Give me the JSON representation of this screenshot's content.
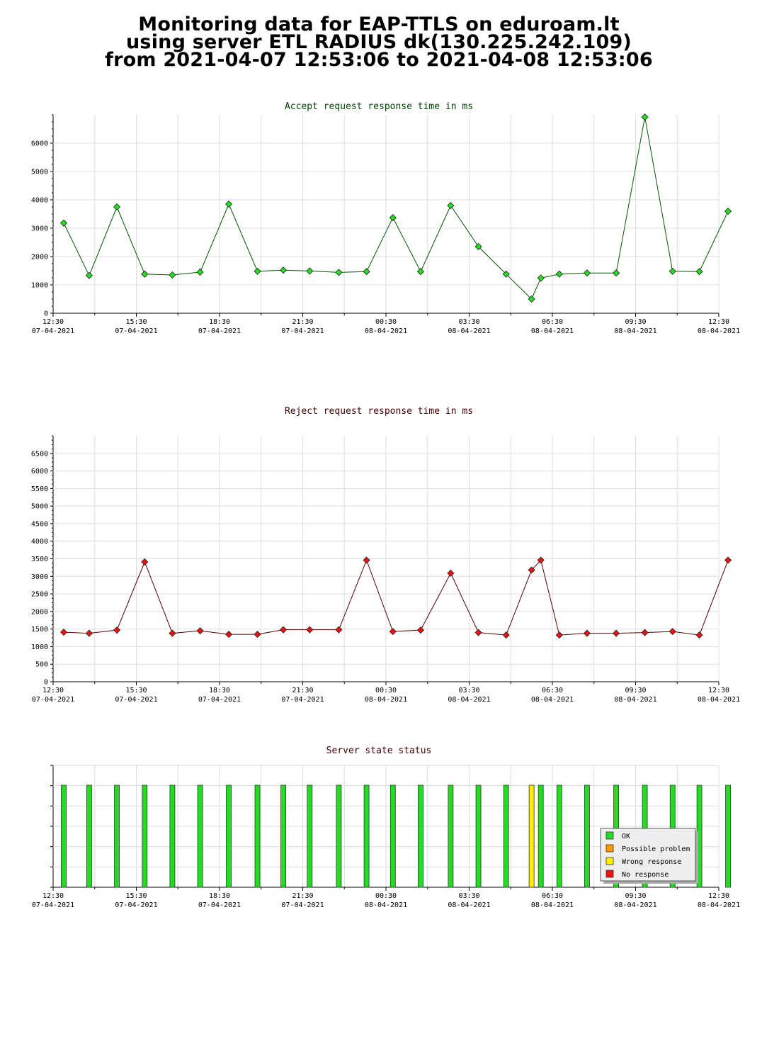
{
  "header": {
    "line1": "Monitoring data for EAP-TTLS on eduroam.lt",
    "line2": "using server ETL RADIUS dk(130.225.242.109)",
    "line3": "from 2021-04-07 12:53:06 to 2021-04-08 12:53:06"
  },
  "colors": {
    "accept_title": "#004400",
    "reject_title": "#440000",
    "accept_line": "#005500",
    "accept_marker": "#22dd22",
    "reject_line": "#550000",
    "reject_marker": "#ee1111",
    "grid": "#dddddd",
    "ok": "#22dd22",
    "possible_problem": "#ff9900",
    "wrong_response": "#ffee00",
    "no_response": "#ee1111"
  },
  "x_ticks": [
    {
      "time": "12:30",
      "date": "07-04-2021"
    },
    {
      "time": "15:30",
      "date": "07-04-2021"
    },
    {
      "time": "18:30",
      "date": "07-04-2021"
    },
    {
      "time": "21:30",
      "date": "07-04-2021"
    },
    {
      "time": "00:30",
      "date": "08-04-2021"
    },
    {
      "time": "03:30",
      "date": "08-04-2021"
    },
    {
      "time": "06:30",
      "date": "08-04-2021"
    },
    {
      "time": "09:30",
      "date": "08-04-2021"
    },
    {
      "time": "12:30",
      "date": "08-04-2021"
    }
  ],
  "chart_data": [
    {
      "type": "line",
      "title": "Accept request response time in ms",
      "xlabel": "",
      "ylabel": "",
      "x": [
        "2021-04-07 12:53",
        "2021-04-07 13:48",
        "2021-04-07 14:48",
        "2021-04-07 15:48",
        "2021-04-07 16:48",
        "2021-04-07 17:48",
        "2021-04-07 18:50",
        "2021-04-07 19:52",
        "2021-04-07 20:48",
        "2021-04-07 21:45",
        "2021-04-07 22:48",
        "2021-04-07 23:48",
        "2021-04-08 00:45",
        "2021-04-08 01:45",
        "2021-04-08 02:50",
        "2021-04-08 03:50",
        "2021-04-08 04:50",
        "2021-04-08 05:45",
        "2021-04-08 06:05",
        "2021-04-08 06:45",
        "2021-04-08 07:45",
        "2021-04-08 08:48",
        "2021-04-08 09:50",
        "2021-04-08 10:50",
        "2021-04-08 11:48",
        "2021-04-08 12:50"
      ],
      "values": [
        3180,
        1330,
        3750,
        1380,
        1350,
        1450,
        3850,
        1480,
        1520,
        1490,
        1440,
        1470,
        3370,
        1470,
        3800,
        2350,
        1380,
        500,
        1240,
        1380,
        1420,
        1420,
        6920,
        1480,
        1470,
        3600
      ],
      "ylim": [
        0,
        7000
      ],
      "yticks": [
        0,
        1000,
        2000,
        3000,
        4000,
        5000,
        6000
      ],
      "grid": true
    },
    {
      "type": "line",
      "title": "Reject request response time in ms",
      "xlabel": "",
      "ylabel": "",
      "x": [
        "2021-04-07 12:53",
        "2021-04-07 13:48",
        "2021-04-07 14:48",
        "2021-04-07 15:48",
        "2021-04-07 16:48",
        "2021-04-07 17:48",
        "2021-04-07 18:50",
        "2021-04-07 19:52",
        "2021-04-07 20:48",
        "2021-04-07 21:45",
        "2021-04-07 22:48",
        "2021-04-07 23:48",
        "2021-04-08 00:45",
        "2021-04-08 01:45",
        "2021-04-08 02:50",
        "2021-04-08 03:50",
        "2021-04-08 04:50",
        "2021-04-08 05:45",
        "2021-04-08 06:05",
        "2021-04-08 06:45",
        "2021-04-08 07:45",
        "2021-04-08 08:48",
        "2021-04-08 09:50",
        "2021-04-08 10:50",
        "2021-04-08 11:48",
        "2021-04-08 12:50"
      ],
      "values": [
        1410,
        1380,
        1470,
        3410,
        1380,
        1450,
        1350,
        1350,
        1480,
        1480,
        1480,
        3460,
        1430,
        1470,
        3090,
        1400,
        1330,
        3180,
        3460,
        1330,
        1380,
        1380,
        1400,
        1430,
        1330,
        3460
      ],
      "ylim": [
        0,
        7000
      ],
      "yticks": [
        0,
        500,
        1000,
        1500,
        2000,
        2500,
        3000,
        3500,
        4000,
        4500,
        5000,
        5500,
        6000,
        6500
      ],
      "grid": true
    },
    {
      "type": "bar",
      "title": "Server state status",
      "xlabel": "",
      "ylabel": "",
      "series": [
        {
          "name": "OK",
          "x": [
            "2021-04-07 12:53",
            "2021-04-07 13:48",
            "2021-04-07 14:48",
            "2021-04-07 15:48",
            "2021-04-07 16:48",
            "2021-04-07 17:48",
            "2021-04-07 18:50",
            "2021-04-07 19:52",
            "2021-04-07 20:48",
            "2021-04-07 21:45",
            "2021-04-07 22:48",
            "2021-04-07 23:48",
            "2021-04-08 00:45",
            "2021-04-08 01:45",
            "2021-04-08 02:50",
            "2021-04-08 03:50",
            "2021-04-08 04:50",
            "2021-04-08 06:05",
            "2021-04-08 06:45",
            "2021-04-08 07:45",
            "2021-04-08 08:48",
            "2021-04-08 09:50",
            "2021-04-08 10:50",
            "2021-04-08 11:48",
            "2021-04-08 12:50"
          ]
        },
        {
          "name": "Wrong response",
          "x": [
            "2021-04-08 05:45"
          ]
        }
      ],
      "legend": [
        "OK",
        "Possible problem",
        "Wrong response",
        "No response"
      ],
      "legend_position": "bottom-right",
      "grid": true
    }
  ]
}
